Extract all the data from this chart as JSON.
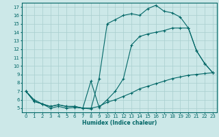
{
  "xlabel": "Humidex (Indice chaleur)",
  "ylabel": "",
  "bg_color": "#cce8e8",
  "line_color": "#006666",
  "grid_color": "#a8cece",
  "xlim": [
    -0.5,
    23.5
  ],
  "ylim": [
    4.5,
    17.5
  ],
  "xticks": [
    0,
    1,
    2,
    3,
    4,
    5,
    6,
    7,
    8,
    9,
    10,
    11,
    12,
    13,
    14,
    15,
    16,
    17,
    18,
    19,
    20,
    21,
    22,
    23
  ],
  "yticks": [
    5,
    6,
    7,
    8,
    9,
    10,
    11,
    12,
    13,
    14,
    15,
    16,
    17
  ],
  "line1_x": [
    0,
    1,
    2,
    3,
    4,
    5,
    6,
    7,
    8,
    9,
    10,
    11,
    12,
    13,
    14,
    15,
    16,
    17,
    18,
    19,
    20,
    21,
    22,
    23
  ],
  "line1_y": [
    7.0,
    6.0,
    5.5,
    5.0,
    5.2,
    5.0,
    5.1,
    5.0,
    4.9,
    8.5,
    15.0,
    15.5,
    16.0,
    16.2,
    16.0,
    16.8,
    17.2,
    16.5,
    16.3,
    15.8,
    14.5,
    11.8,
    10.3,
    9.2
  ],
  "line2_x": [
    0,
    1,
    2,
    3,
    4,
    5,
    6,
    7,
    8,
    9,
    10,
    11,
    12,
    13,
    14,
    15,
    16,
    17,
    18,
    19,
    20,
    21,
    22,
    23
  ],
  "line2_y": [
    7.0,
    5.8,
    5.5,
    5.2,
    5.4,
    5.2,
    5.2,
    5.0,
    8.2,
    5.1,
    6.0,
    7.0,
    8.5,
    12.5,
    13.5,
    13.8,
    14.0,
    14.2,
    14.5,
    14.5,
    14.5,
    11.8,
    10.3,
    9.2
  ],
  "line3_x": [
    0,
    1,
    2,
    3,
    4,
    5,
    6,
    7,
    8,
    9,
    10,
    11,
    12,
    13,
    14,
    15,
    16,
    17,
    18,
    19,
    20,
    21,
    22,
    23
  ],
  "line3_y": [
    7.0,
    5.8,
    5.5,
    5.2,
    5.4,
    5.2,
    5.2,
    5.0,
    5.0,
    5.2,
    5.7,
    6.0,
    6.4,
    6.8,
    7.3,
    7.6,
    7.9,
    8.2,
    8.5,
    8.7,
    8.9,
    9.0,
    9.1,
    9.2
  ]
}
